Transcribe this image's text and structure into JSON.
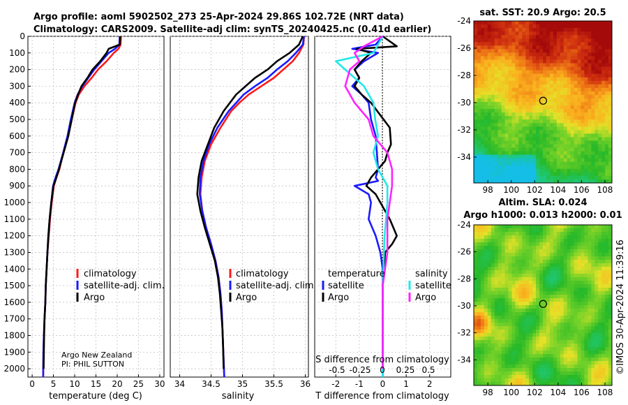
{
  "header": {
    "line1": "Argo profile: aoml 5902502_273 25-Apr-2024 29.86S 102.72E (NRT data)",
    "line2": "Climatology: CARS2009. Satellite-adj clim: synTS_20240425.nc (0.41d earlier)"
  },
  "footer": {
    "credit1": "Argo New Zealand",
    "credit2": "PI: PHIL SUTTON",
    "copyright": "©IMOS 30-Apr-2024 11:39:16"
  },
  "colors": {
    "climatology": "#ff1a1a",
    "satellite": "#1a1aff",
    "argo": "#000000",
    "sal_sat": "#22e8e8",
    "sal_argo": "#ff22ff"
  },
  "chart_data": [
    {
      "type": "line",
      "id": "temperature",
      "xlabel": "temperature (deg C)",
      "xlim": [
        -1,
        31
      ],
      "xticks": [
        0,
        5,
        10,
        15,
        20,
        25,
        30
      ],
      "ylim": [
        0,
        2050
      ],
      "yticks": [
        0,
        100,
        200,
        300,
        400,
        500,
        600,
        700,
        800,
        900,
        1000,
        1100,
        1200,
        1300,
        1400,
        1500,
        1600,
        1700,
        1800,
        1900,
        2000
      ],
      "legend": [
        "climatology",
        "satellite-adj. clim.",
        "Argo"
      ],
      "series": [
        {
          "name": "climatology",
          "color": "#ff1a1a",
          "x": [
            20.9,
            20.8,
            20.3,
            19.2,
            17.5,
            15.5,
            14,
            12.3,
            11,
            10.2,
            9.3,
            8.4,
            7.3,
            6.4,
            5.7,
            5.1,
            4.6,
            4.2,
            3.9,
            3.6,
            3.4,
            3.2,
            3.1,
            2.9,
            2.75,
            2.65,
            2.6
          ],
          "y": [
            0,
            50,
            75,
            100,
            150,
            200,
            250,
            300,
            350,
            400,
            500,
            600,
            700,
            800,
            850,
            900,
            1000,
            1100,
            1200,
            1300,
            1400,
            1500,
            1600,
            1700,
            1800,
            1900,
            2050
          ]
        },
        {
          "name": "satellite-adj. clim.",
          "color": "#1a1aff",
          "x": [
            20.6,
            20.5,
            19.5,
            18,
            16.3,
            14.6,
            13.2,
            11.8,
            10.7,
            10,
            9.1,
            8.3,
            7.3,
            6.2,
            5.5,
            4.9,
            4.5,
            4.1,
            3.8,
            3.6,
            3.4,
            3.2,
            3.1,
            2.9,
            2.75,
            2.65,
            2.6
          ],
          "y": [
            0,
            50,
            75,
            100,
            150,
            200,
            250,
            300,
            350,
            400,
            500,
            600,
            700,
            800,
            850,
            900,
            1000,
            1100,
            1200,
            1300,
            1400,
            1500,
            1600,
            1700,
            1800,
            1900,
            2050
          ]
        },
        {
          "name": "Argo",
          "color": "#000000",
          "x": [
            20.7,
            20.6,
            18,
            17.5,
            16,
            14.2,
            13,
            11.6,
            10.8,
            10.1,
            9.3,
            8.5,
            7.4,
            6.3,
            5.7,
            5,
            4.5,
            4.1,
            3.8,
            3.6,
            3.4,
            3.2,
            3.1,
            2.9,
            2.8,
            2.7
          ],
          "y": [
            0,
            50,
            75,
            100,
            150,
            200,
            250,
            300,
            350,
            400,
            500,
            600,
            700,
            800,
            850,
            900,
            1000,
            1100,
            1200,
            1300,
            1400,
            1500,
            1600,
            1700,
            1800,
            2000
          ]
        }
      ]
    },
    {
      "type": "line",
      "id": "salinity",
      "xlabel": "salinity",
      "xlim": [
        33.85,
        36.05
      ],
      "xticks": [
        34,
        34.5,
        35,
        35.5,
        36
      ],
      "xticklabels": [
        "34",
        "34.5",
        "35",
        "35.5",
        "36"
      ],
      "ylim": [
        0,
        2050
      ],
      "legend": [
        "climatology",
        "satellite-adj. clim.",
        "Argo"
      ],
      "series": [
        {
          "name": "climatology",
          "color": "#ff1a1a",
          "x": [
            35.98,
            35.97,
            35.9,
            35.8,
            35.65,
            35.5,
            35.3,
            35.1,
            34.95,
            34.82,
            34.65,
            34.5,
            34.4,
            34.35,
            34.33,
            34.36,
            34.42,
            34.5,
            34.57,
            34.62,
            34.65,
            34.67,
            34.68,
            34.69,
            34.7,
            34.71
          ],
          "y": [
            0,
            50,
            100,
            150,
            200,
            250,
            300,
            350,
            400,
            450,
            550,
            650,
            750,
            850,
            950,
            1050,
            1150,
            1250,
            1350,
            1450,
            1550,
            1650,
            1750,
            1850,
            1950,
            2050
          ]
        },
        {
          "name": "satellite-adj. clim.",
          "color": "#1a1aff",
          "x": [
            35.98,
            35.96,
            35.85,
            35.72,
            35.55,
            35.4,
            35.2,
            35.02,
            34.9,
            34.78,
            34.6,
            34.47,
            34.38,
            34.33,
            34.32,
            34.36,
            34.42,
            34.5,
            34.57,
            34.62,
            34.65,
            34.67,
            34.68,
            34.69,
            34.7,
            34.71
          ],
          "y": [
            0,
            50,
            100,
            150,
            200,
            250,
            300,
            350,
            400,
            450,
            550,
            650,
            750,
            850,
            950,
            1050,
            1150,
            1250,
            1350,
            1450,
            1550,
            1650,
            1750,
            1850,
            1950,
            2050
          ]
        },
        {
          "name": "Argo",
          "color": "#000000",
          "x": [
            35.96,
            35.9,
            35.75,
            35.55,
            35.4,
            35.2,
            35.05,
            34.9,
            34.8,
            34.7,
            34.55,
            34.45,
            34.35,
            34.3,
            34.28,
            34.33,
            34.4,
            34.48,
            34.56,
            34.61,
            34.64,
            34.66,
            34.68,
            34.69,
            34.7
          ],
          "y": [
            0,
            50,
            100,
            150,
            200,
            250,
            300,
            350,
            400,
            450,
            550,
            650,
            750,
            850,
            950,
            1050,
            1150,
            1250,
            1350,
            1450,
            1550,
            1650,
            1750,
            1850,
            2000
          ]
        }
      ]
    },
    {
      "type": "line",
      "id": "differences",
      "xlabel": "T difference from climatology",
      "xlim": [
        -2.9,
        2.9
      ],
      "xticks": [
        -2,
        -1,
        0,
        1,
        2
      ],
      "top_label": "S difference from climatology",
      "s_ticks": [
        "-0.5",
        "-0.25",
        "0",
        "0.25",
        "0.5"
      ],
      "ylim": [
        0,
        2050
      ],
      "legend_titles": [
        "temperature",
        "salinity"
      ],
      "legend_left": [
        "satellite",
        "Argo"
      ],
      "legend_right": [
        "satellite",
        "Argo"
      ],
      "series": [
        {
          "name": "T satellite",
          "color": "#1a1aff",
          "x": [
            0,
            -0.3,
            -1.3,
            -0.2,
            -0.8,
            -1.2,
            -1.0,
            -1.3,
            -0.9,
            -0.6,
            -0.5,
            -0.3,
            -0.25,
            -0.2,
            -0.3,
            -0.2,
            -1.2,
            -0.6,
            -0.5,
            -0.6,
            -0.3,
            -0.1,
            0,
            0,
            0,
            0,
            0
          ],
          "y": [
            0,
            50,
            75,
            100,
            150,
            200,
            250,
            300,
            350,
            400,
            500,
            600,
            700,
            800,
            850,
            870,
            900,
            950,
            1000,
            1100,
            1200,
            1300,
            1400,
            1600,
            1800,
            2000,
            2050
          ]
        },
        {
          "name": "T Argo",
          "color": "#000000",
          "x": [
            0,
            0.6,
            -1.1,
            -0.5,
            -0.9,
            -1.2,
            -1.0,
            -1.2,
            -0.9,
            -0.5,
            0.3,
            0.35,
            0.2,
            0.1,
            -0.2,
            -0.5,
            -0.7,
            -0.3,
            -0.1,
            0.3,
            0.6,
            0.4,
            0.1,
            0,
            0,
            0
          ],
          "y": [
            0,
            60,
            75,
            100,
            150,
            200,
            250,
            300,
            350,
            400,
            550,
            650,
            700,
            750,
            800,
            850,
            900,
            950,
            1000,
            1100,
            1200,
            1250,
            1300,
            1500,
            1800,
            2000
          ]
        },
        {
          "name": "S satellite",
          "color": "#22e8e8",
          "x": [
            0,
            -0.05,
            -0.1,
            -0.5,
            -0.4,
            -0.2,
            -0.1,
            -0.08,
            -0.05,
            -0.1,
            -0.05,
            0.05,
            0.05,
            0.02,
            0,
            0,
            0
          ],
          "y": [
            0,
            50,
            100,
            150,
            200,
            300,
            400,
            500,
            600,
            700,
            800,
            900,
            1000,
            1200,
            1500,
            1800,
            2050
          ]
        },
        {
          "name": "S Argo",
          "color": "#ff22ff",
          "x": [
            0,
            -0.2,
            -0.3,
            -0.25,
            -0.35,
            -0.4,
            -0.3,
            -0.15,
            -0.1,
            0.05,
            0.1,
            0.1,
            0.05,
            0.05,
            0,
            0
          ],
          "y": [
            0,
            60,
            100,
            150,
            200,
            300,
            400,
            500,
            600,
            700,
            800,
            900,
            1100,
            1300,
            1500,
            2000
          ]
        }
      ]
    },
    {
      "type": "heatmap",
      "id": "sst_map",
      "title": "sat. SST: 20.9 Argo: 20.5",
      "xticks": [
        98,
        100,
        102,
        104,
        106,
        108
      ],
      "yticks": [
        -24,
        -26,
        -28,
        -30,
        -32,
        -34
      ],
      "xlim": [
        96.8,
        108.6
      ],
      "ylim": [
        -35.9,
        -24
      ],
      "marker": {
        "lon": 102.72,
        "lat": -29.86
      }
    },
    {
      "type": "heatmap",
      "id": "sla_map",
      "title_line1": "Altim. SLA: 0.024",
      "title_line2": "Argo h1000: 0.013 h2000: 0.01",
      "xticks": [
        98,
        100,
        102,
        104,
        106,
        108
      ],
      "yticks": [
        -24,
        -26,
        -28,
        -30,
        -32,
        -34
      ],
      "xlim": [
        96.8,
        108.6
      ],
      "ylim": [
        -35.9,
        -24
      ],
      "marker": {
        "lon": 102.72,
        "lat": -29.86
      }
    }
  ]
}
